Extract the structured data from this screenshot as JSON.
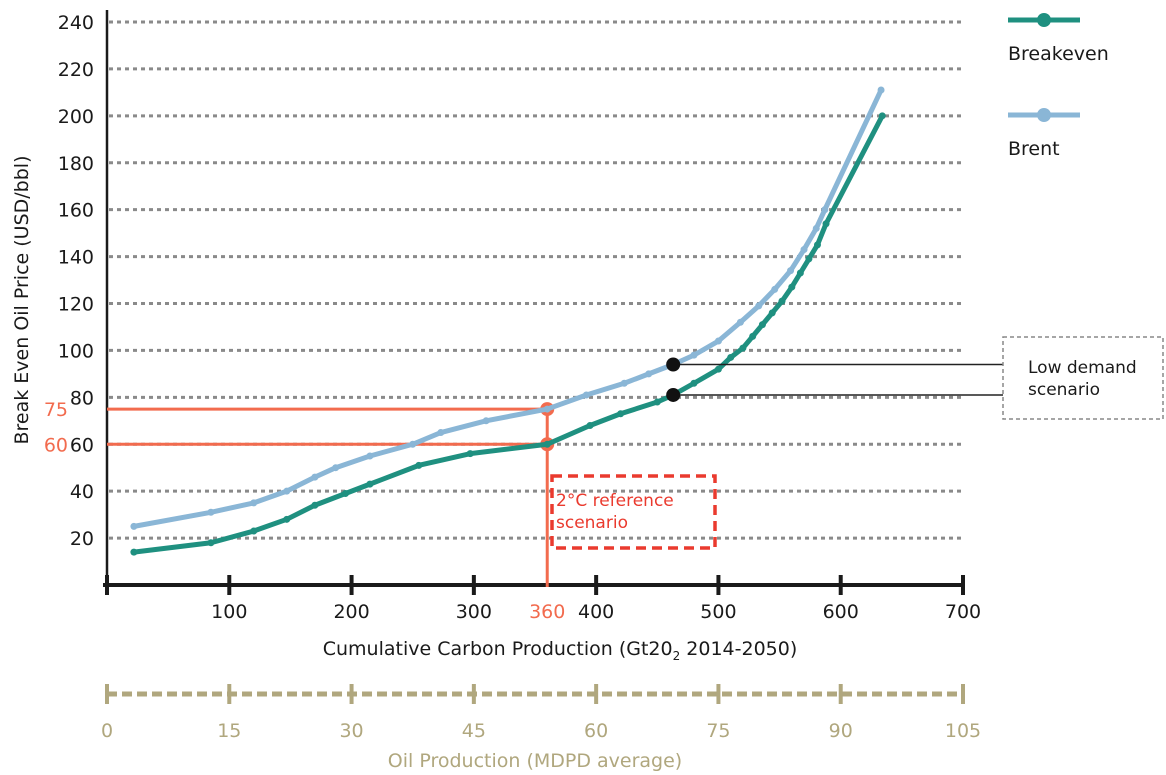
{
  "chart_data": {
    "type": "line",
    "xlabel": "Cumulative Carbon Production (Gt20",
    "xlabel_sub": "2",
    "xlabel_tail": " 2014-2050)",
    "ylabel": "Break Even Oil Price (USD/bbl)",
    "xlim": [
      0,
      700
    ],
    "ylim": [
      0,
      240
    ],
    "x_ticks": [
      100,
      200,
      300,
      400,
      500,
      600,
      700
    ],
    "y_ticks": [
      20,
      40,
      60,
      80,
      100,
      120,
      140,
      160,
      180,
      200,
      220,
      240
    ],
    "grid": "horizontal dotted",
    "legend_position": "top-right",
    "series": [
      {
        "name": "Breakeven",
        "color": "#1f9080",
        "x": [
          22,
          85,
          120,
          147,
          170,
          195,
          215,
          255,
          297,
          360,
          395,
          420,
          450,
          463,
          480,
          500,
          510,
          520,
          528,
          536,
          544,
          552,
          560,
          567,
          574,
          581,
          588,
          634
        ],
        "y": [
          14,
          18,
          23,
          28,
          34,
          39,
          43,
          51,
          56,
          60,
          68,
          73,
          78,
          81,
          86,
          92,
          97,
          101,
          106,
          111,
          116,
          121,
          127,
          133,
          139,
          145,
          154,
          200
        ]
      },
      {
        "name": "Brent",
        "color": "#8ab6d6",
        "x": [
          22,
          85,
          120,
          147,
          170,
          187,
          215,
          250,
          273,
          310,
          360,
          392,
          423,
          443,
          463,
          480,
          500,
          518,
          533,
          546,
          559,
          570,
          580,
          587,
          633
        ],
        "y": [
          25,
          31,
          35,
          40,
          46,
          50,
          55,
          60,
          65,
          70,
          75,
          81,
          86,
          90,
          94,
          98,
          104,
          112,
          119,
          126,
          134,
          143,
          152,
          160,
          211
        ]
      }
    ],
    "annotations": {
      "vertical_marker_x": 360,
      "vertical_marker_label": "360",
      "horizontal_markers": [
        {
          "y": 75,
          "label": "75"
        },
        {
          "y": 60,
          "label": "60"
        }
      ],
      "reference_box_lines": [
        "2°C reference",
        "scenario"
      ],
      "low_demand_points": [
        {
          "x": 463,
          "y": 94
        },
        {
          "x": 463,
          "y": 81
        }
      ],
      "low_demand_box_lines": [
        "Low demand",
        "scenario"
      ]
    },
    "secondary_axis": {
      "label": "Oil Production (MDPD average)",
      "ticks": [
        "0",
        "15",
        "30",
        "45",
        "60",
        "75",
        "90",
        "105"
      ],
      "color": "#b0a77e"
    },
    "colors": {
      "orange": "#f26b4e",
      "red": "#ea3a2e",
      "grid": "#8a8a8a"
    }
  }
}
